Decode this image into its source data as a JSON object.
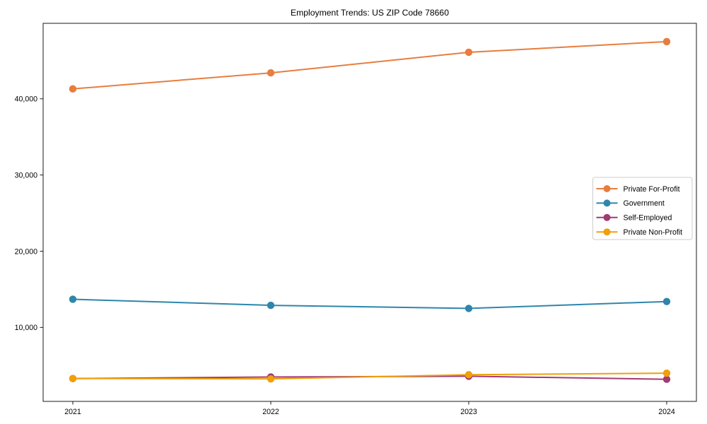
{
  "figure": {
    "title": "Employment Trends: US ZIP Code 78660"
  },
  "chart_data": {
    "type": "line",
    "title": "Employment Trends: US ZIP Code 78660",
    "xlabel": "",
    "ylabel": "",
    "x": [
      2021,
      2022,
      2023,
      2024
    ],
    "x_tick_labels": [
      "2021",
      "2022",
      "2023",
      "2024"
    ],
    "series": [
      {
        "name": "Private For-Profit",
        "color": "#E87D3E",
        "values": [
          41300,
          43400,
          46100,
          47500
        ]
      },
      {
        "name": "Government",
        "color": "#2E86AB",
        "values": [
          13700,
          12900,
          12500,
          13400
        ]
      },
      {
        "name": "Self-Employed",
        "color": "#A23B72",
        "values": [
          3300,
          3500,
          3600,
          3200
        ]
      },
      {
        "name": "Private Non-Profit",
        "color": "#EFA00B",
        "values": [
          3300,
          3250,
          3800,
          4000
        ]
      }
    ],
    "yticks": [
      {
        "value": 10000,
        "label": "10,000"
      },
      {
        "value": 20000,
        "label": "20,000"
      },
      {
        "value": 30000,
        "label": "30,000"
      },
      {
        "value": 40000,
        "label": "40,000"
      }
    ],
    "xlim": [
      2020.85,
      2024.15
    ],
    "ylim": [
      300,
      49900
    ],
    "grid": false,
    "legend_position": "center-right",
    "axis_color": "#1a1a1a",
    "legend_border_color": "#cccccc",
    "legend_background": "#ffffff"
  }
}
